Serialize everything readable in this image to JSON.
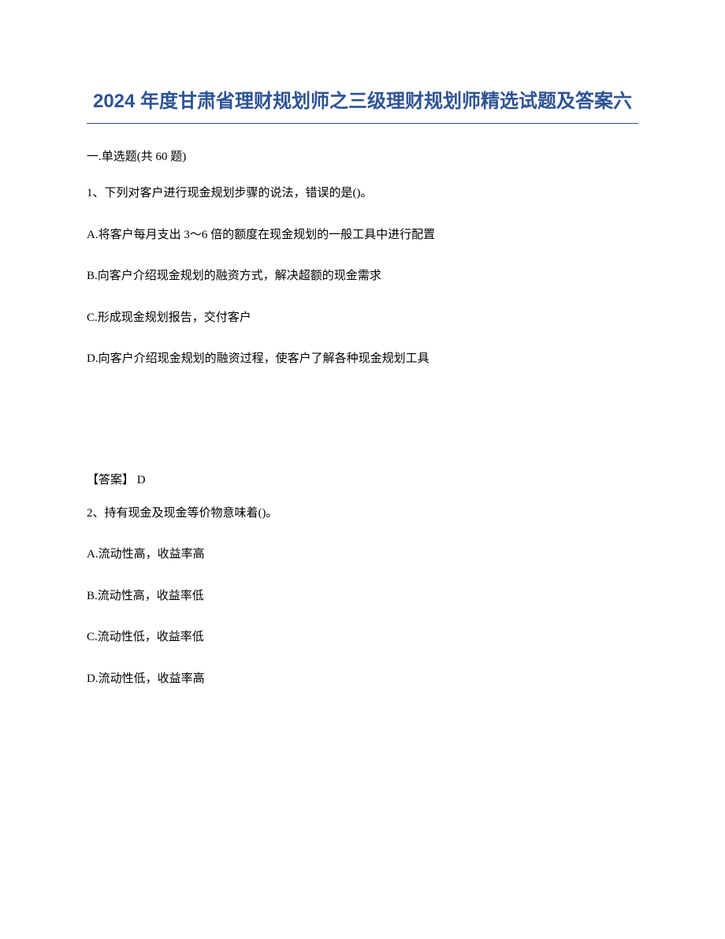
{
  "title": "2024 年度甘肃省理财规划师之三级理财规划师精选试题及答案六",
  "section_header": "一.单选题(共 60 题)",
  "question1": {
    "stem": "1、下列对客户进行现金规划步骤的说法，错误的是()。",
    "options": {
      "a": "A.将客户每月支出 3～6 倍的额度在现金规划的一般工具中进行配置",
      "b": "B.向客户介绍现金规划的融资方式，解决超额的现金需求",
      "c": "C.形成现金规划报告，交付客户",
      "d": "D.向客户介绍现金规划的融资过程，使客户了解各种现金规划工具"
    },
    "answer": "【答案】   D"
  },
  "question2": {
    "stem": "2、持有现金及现金等价物意味着()。",
    "options": {
      "a": "A.流动性高，收益率高",
      "b": "B.流动性高，收益率低",
      "c": "C.流动性低，收益率低",
      "d": "D.流动性低，收益率高"
    }
  }
}
